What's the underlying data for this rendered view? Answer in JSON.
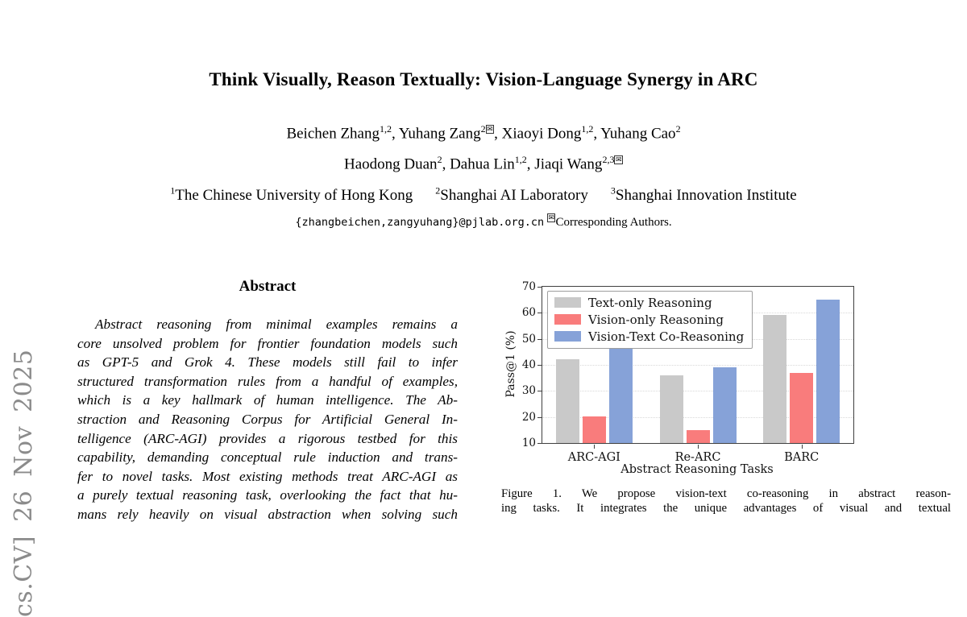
{
  "banner": {
    "text": "cs.CV] 26 Nov 2025"
  },
  "header": {
    "title": "Think Visually, Reason Textually: Vision-Language Synergy in ARC",
    "authors_line1": [
      {
        "name": "Beichen Zhang",
        "sup": "1,2",
        "env": "",
        "sep": ", "
      },
      {
        "name": "Yuhang Zang",
        "sup": "2",
        "env": "✉",
        "sep": ", "
      },
      {
        "name": "Xiaoyi Dong",
        "sup": "1,2",
        "env": "",
        "sep": ", "
      },
      {
        "name": "Yuhang Cao",
        "sup": "2",
        "env": "",
        "sep": ""
      }
    ],
    "authors_line2": [
      {
        "name": "Haodong Duan",
        "sup": "2",
        "env": "",
        "sep": ", "
      },
      {
        "name": "Dahua Lin",
        "sup": "1,2",
        "env": "",
        "sep": ", "
      },
      {
        "name": "Jiaqi Wang",
        "sup": "2,3",
        "env": "✉",
        "sep": ""
      }
    ],
    "affiliations": [
      {
        "sup": "1",
        "text": "The Chinese University of Hong Kong"
      },
      {
        "sup": "2",
        "text": "Shanghai AI Laboratory"
      },
      {
        "sup": "3",
        "text": "Shanghai Innovation Institute"
      }
    ],
    "contact": {
      "email": "{zhangbeichen,zangyuhang}@pjlab.org.cn",
      "env": "✉",
      "note": "Corresponding Authors."
    }
  },
  "abstract": {
    "heading": "Abstract",
    "lines": [
      "Abstract reasoning from minimal examples remains a",
      "core unsolved problem for frontier foundation models such",
      "as GPT-5 and Grok 4.  These models still fail to infer",
      "structured transformation rules from a handful of examples,",
      "which is a key hallmark of human intelligence.  The Ab-",
      "straction and Reasoning Corpus for Artificial General In-",
      "telligence (ARC-AGI) provides a rigorous testbed for this",
      "capability, demanding conceptual rule induction and trans-",
      "fer to novel tasks. Most existing methods treat ARC-AGI as",
      "a purely textual reasoning task, overlooking the fact that hu-",
      "mans rely heavily on visual abstraction when solving such"
    ]
  },
  "figure": {
    "caption_lines": [
      "Figure 1. We propose vision-text co-reasoning in abstract reason-",
      "ing tasks. It integrates the unique advantages of visual and textual"
    ]
  },
  "chart_data": {
    "type": "bar",
    "title": "",
    "categories": [
      "ARC-AGI",
      "Re-ARC",
      "BARC"
    ],
    "series": [
      {
        "name": "Text-only Reasoning",
        "color": "#c9c9c9",
        "values": [
          42.3,
          36.0,
          59.2
        ]
      },
      {
        "name": "Vision-only Reasoning",
        "color": "#f97c7c",
        "values": [
          20.2,
          15.0,
          37.0
        ]
      },
      {
        "name": "Vision-Text Co-Reasoning",
        "color": "#86a2d8",
        "values": [
          46.8,
          39.0,
          65.0
        ]
      }
    ],
    "xlabel": "Abstract Reasoning Tasks",
    "ylabel": "Pass@1 (%)",
    "ylim": [
      10,
      70
    ],
    "yticks": [
      10,
      20,
      30,
      40,
      50,
      60,
      70
    ],
    "grid": true,
    "legend_position": "upper left"
  }
}
